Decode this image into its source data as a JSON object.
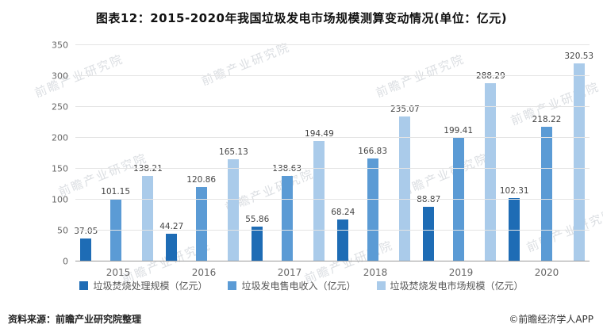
{
  "title": "图表12：2015-2020年我国垃圾发电市场规模测算变动情况(单位：亿元)",
  "footer": {
    "source": "资料来源：前瞻产业研究院整理",
    "copyright": "©前瞻经济学人APP"
  },
  "watermark": {
    "text": "前瞻产业研究院"
  },
  "chart_data": {
    "type": "bar",
    "title": "图表12：2015-2020年我国垃圾发电市场规模测算变动情况(单位：亿元)",
    "categories": [
      "2015",
      "2016",
      "2017",
      "2018",
      "2019",
      "2020"
    ],
    "series": [
      {
        "name": "垃圾焚烧处理规模（亿元）",
        "color": "#1e6cb5",
        "values": [
          37.05,
          44.27,
          55.86,
          68.24,
          88.87,
          102.31
        ]
      },
      {
        "name": "垃圾发电售电收入（亿元）",
        "color": "#5b9bd5",
        "values": [
          101.15,
          120.86,
          138.63,
          166.83,
          199.41,
          218.22
        ]
      },
      {
        "name": "垃圾焚烧发电市场规模（亿元）",
        "color": "#aacbea",
        "values": [
          138.21,
          165.13,
          194.49,
          235.07,
          288.29,
          320.53
        ]
      }
    ],
    "xlabel": "",
    "ylabel": "",
    "ylim": [
      0,
      350
    ],
    "ytick_interval": 50,
    "grid": true,
    "legend_position": "bottom"
  }
}
